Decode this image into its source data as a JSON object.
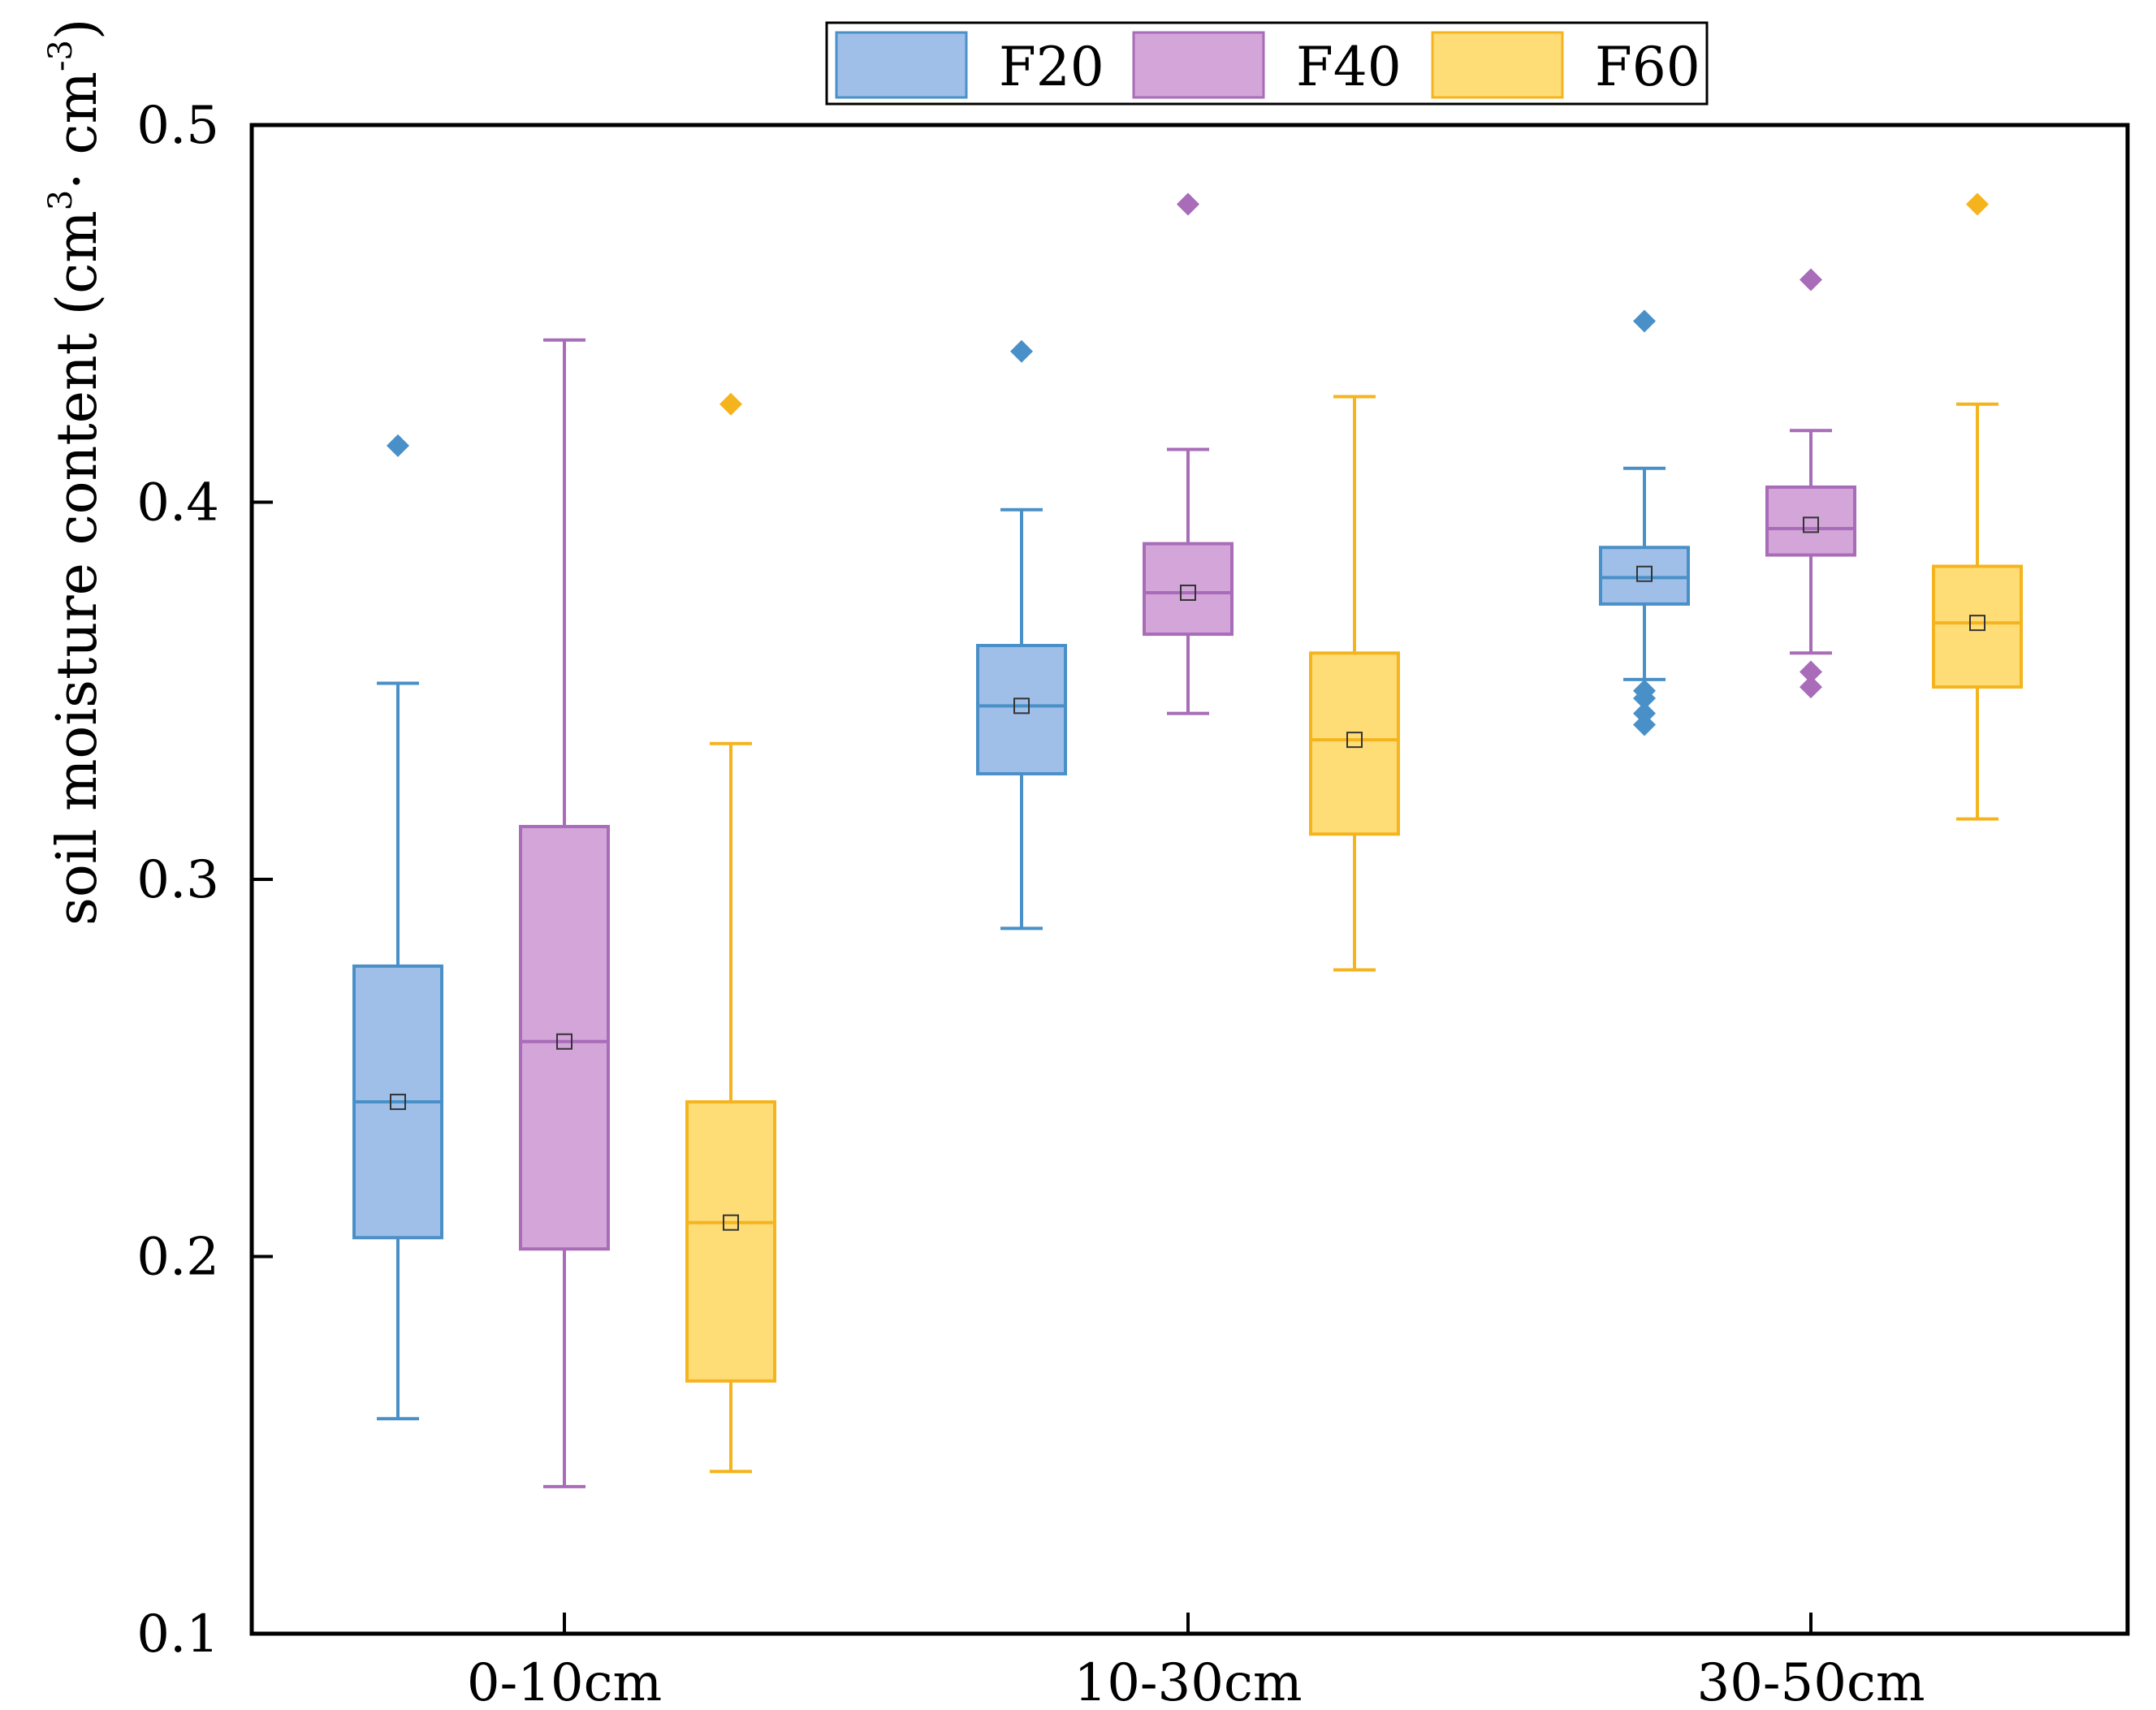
{
  "chart_data": {
    "type": "box",
    "title": "",
    "xlabel": "",
    "ylabel": {
      "text": "soil moisture content (cm",
      "sup1": "3",
      "mid": "· cm",
      "sup2": "-3",
      "end": ")"
    },
    "ylim": [
      0.1,
      0.5
    ],
    "yticks": [
      0.1,
      0.2,
      0.3,
      0.4,
      0.5
    ],
    "ytick_labels": [
      "0.1",
      "0.2",
      "0.3",
      "0.4",
      "0.5"
    ],
    "categories": [
      "0-10cm",
      "10-30cm",
      "30-50cm"
    ],
    "legend": {
      "position": "top-center",
      "entries": [
        "F20",
        "F40",
        "F60"
      ]
    },
    "series": [
      {
        "name": "F20",
        "stroke": "#4a90c8",
        "fill": "#9fbfe8",
        "boxes": [
          {
            "category": "0-10cm",
            "whisker_low": 0.157,
            "q1": 0.205,
            "median": 0.241,
            "q3": 0.277,
            "whisker_high": 0.352,
            "mean": 0.241,
            "outliers": [
              0.415
            ]
          },
          {
            "category": "10-30cm",
            "whisker_low": 0.287,
            "q1": 0.328,
            "median": 0.346,
            "q3": 0.362,
            "whisker_high": 0.398,
            "mean": 0.346,
            "outliers": [
              0.44
            ]
          },
          {
            "category": "30-50cm",
            "whisker_low": 0.353,
            "q1": 0.373,
            "median": 0.38,
            "q3": 0.388,
            "whisker_high": 0.409,
            "mean": 0.381,
            "outliers": [
              0.448,
              0.35,
              0.348,
              0.344,
              0.341
            ]
          }
        ]
      },
      {
        "name": "F40",
        "stroke": "#a86cb8",
        "fill": "#d3a5d9",
        "boxes": [
          {
            "category": "0-10cm",
            "whisker_low": 0.139,
            "q1": 0.202,
            "median": 0.257,
            "q3": 0.314,
            "whisker_high": 0.443,
            "mean": 0.257,
            "outliers": []
          },
          {
            "category": "10-30cm",
            "whisker_low": 0.344,
            "q1": 0.365,
            "median": 0.376,
            "q3": 0.389,
            "whisker_high": 0.414,
            "mean": 0.376,
            "outliers": [
              0.479
            ]
          },
          {
            "category": "30-50cm",
            "whisker_low": 0.36,
            "q1": 0.386,
            "median": 0.393,
            "q3": 0.404,
            "whisker_high": 0.419,
            "mean": 0.394,
            "outliers": [
              0.459,
              0.355,
              0.351
            ]
          }
        ]
      },
      {
        "name": "F60",
        "stroke": "#f5b41e",
        "fill": "#fedd77",
        "boxes": [
          {
            "category": "0-10cm",
            "whisker_low": 0.143,
            "q1": 0.167,
            "median": 0.209,
            "q3": 0.241,
            "whisker_high": 0.336,
            "mean": 0.209,
            "outliers": [
              0.426
            ]
          },
          {
            "category": "10-30cm",
            "whisker_low": 0.276,
            "q1": 0.312,
            "median": 0.337,
            "q3": 0.36,
            "whisker_high": 0.428,
            "mean": 0.337,
            "outliers": []
          },
          {
            "category": "30-50cm",
            "whisker_low": 0.316,
            "q1": 0.351,
            "median": 0.368,
            "q3": 0.383,
            "whisker_high": 0.426,
            "mean": 0.368,
            "outliers": [
              0.479
            ]
          }
        ]
      }
    ]
  }
}
